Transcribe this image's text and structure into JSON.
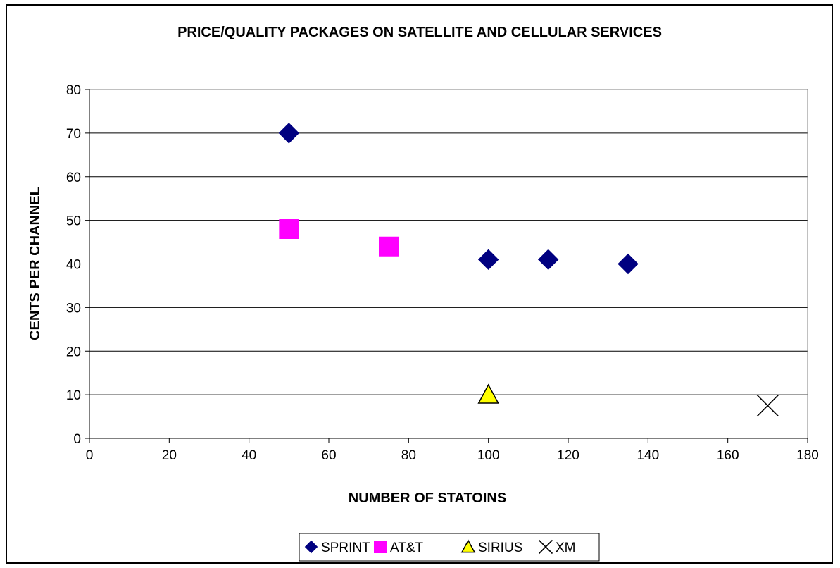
{
  "chart_data": {
    "type": "scatter",
    "title": "PRICE/QUALITY PACKAGES ON SATELLITE AND CELLULAR SERVICES",
    "xlabel": "NUMBER OF STATOINS",
    "ylabel": "CENTS PER CHANNEL",
    "xlim": [
      0,
      180
    ],
    "ylim": [
      0,
      80
    ],
    "xticks": [
      0,
      20,
      40,
      60,
      80,
      100,
      120,
      140,
      160,
      180
    ],
    "yticks": [
      0,
      10,
      20,
      30,
      40,
      50,
      60,
      70,
      80
    ],
    "grid": "horizontal",
    "legend_position": "bottom",
    "series": [
      {
        "name": "SPRINT",
        "marker": "diamond",
        "color": "#000080",
        "points": [
          {
            "x": 50,
            "y": 70
          },
          {
            "x": 100,
            "y": 41
          },
          {
            "x": 115,
            "y": 41
          },
          {
            "x": 135,
            "y": 40
          }
        ]
      },
      {
        "name": "AT&T",
        "marker": "square",
        "color": "#FF00FF",
        "points": [
          {
            "x": 50,
            "y": 48
          },
          {
            "x": 75,
            "y": 44
          }
        ]
      },
      {
        "name": "SIRIUS",
        "marker": "triangle",
        "color": "#FFFF00",
        "points": [
          {
            "x": 100,
            "y": 10
          }
        ]
      },
      {
        "name": "XM",
        "marker": "x",
        "color": "#000000",
        "points": [
          {
            "x": 170,
            "y": 7.5
          }
        ]
      }
    ]
  }
}
